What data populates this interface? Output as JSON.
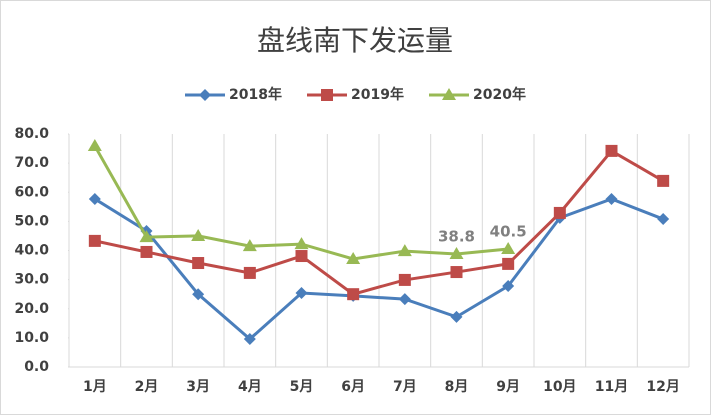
{
  "chart_data": {
    "type": "line",
    "title": "盘线南下发运量",
    "categories": [
      "1月",
      "2月",
      "3月",
      "4月",
      "5月",
      "6月",
      "7月",
      "8月",
      "9月",
      "10月",
      "11月",
      "12月"
    ],
    "series": [
      {
        "name": "2018年",
        "color": "#4a7ebb",
        "marker": "diamond",
        "values": [
          57.7,
          46.7,
          25.0,
          9.6,
          25.4,
          24.4,
          23.3,
          17.2,
          27.8,
          51.2,
          57.7,
          50.8
        ]
      },
      {
        "name": "2019年",
        "color": "#be4b48",
        "marker": "square",
        "values": [
          43.3,
          39.5,
          35.7,
          32.3,
          38.1,
          25.0,
          29.9,
          32.6,
          35.4,
          52.9,
          74.2,
          63.9
        ]
      },
      {
        "name": "2020年",
        "color": "#98b954",
        "marker": "triangle",
        "values": [
          75.9,
          44.6,
          45.0,
          41.5,
          42.2,
          37.1,
          39.8,
          38.8,
          40.5,
          null,
          null,
          null
        ],
        "value_labels": [
          null,
          null,
          null,
          null,
          null,
          null,
          null,
          "38.8",
          "40.5",
          null,
          null,
          null
        ]
      }
    ],
    "ylim": [
      0,
      80
    ],
    "yticks": [
      {
        "value": 0,
        "label": "0.0"
      },
      {
        "value": 10,
        "label": "10.0"
      },
      {
        "value": 20,
        "label": "20.0"
      },
      {
        "value": 30,
        "label": "30.0"
      },
      {
        "value": 40,
        "label": "40.0"
      },
      {
        "value": 50,
        "label": "50.0"
      },
      {
        "value": 60,
        "label": "60.0"
      },
      {
        "value": 70,
        "label": "70.0"
      },
      {
        "value": 80,
        "label": "80.0"
      }
    ],
    "xgrid": true,
    "legend": "top"
  }
}
